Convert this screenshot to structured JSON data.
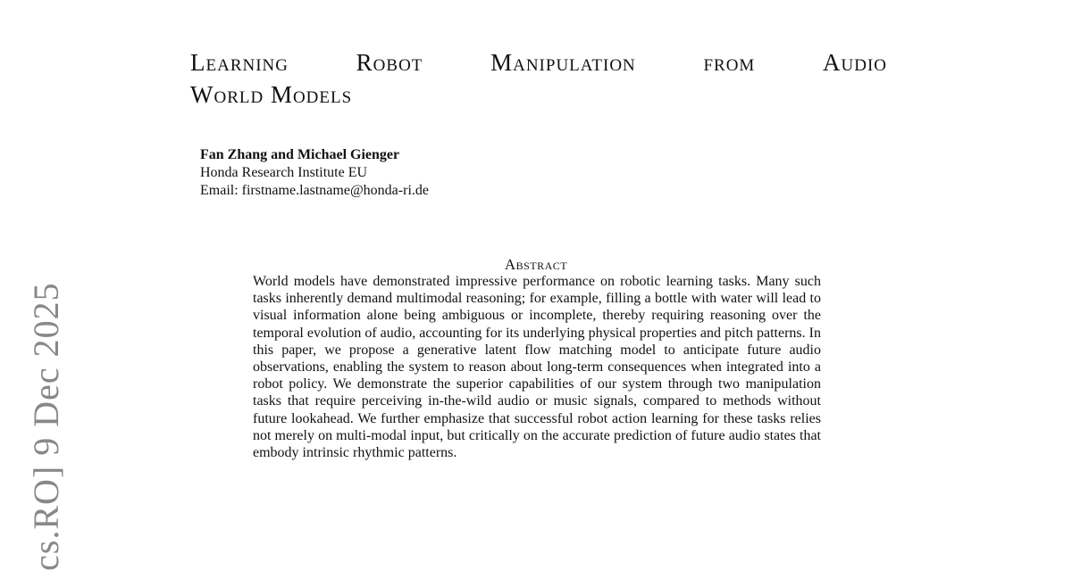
{
  "title": {
    "line1": [
      "Learning",
      "Robot",
      "Manipulation",
      "from",
      "Audio"
    ],
    "line2": "World Models"
  },
  "authors": {
    "names": "Fan Zhang and Michael Gienger",
    "affiliation": "Honda Research Institute EU",
    "email": "Email: firstname.lastname@honda-ri.de"
  },
  "abstract": {
    "heading": "Abstract",
    "text": "World models have demonstrated impressive performance on robotic learning tasks. Many such tasks inherently demand multimodal reasoning; for example, filling a bottle with water will lead to visual information alone being ambiguous or incomplete, thereby requiring reasoning over the temporal evolution of audio, accounting for its underlying physical properties and pitch patterns. In this paper, we propose a generative latent flow matching model to anticipate future audio observations, enabling the system to reason about long-term consequences when integrated into a robot policy. We demonstrate the superior capabilities of our system through two manipulation tasks that require perceiving in-the-wild audio or music signals, compared to methods without future lookahead. We further emphasize that successful robot action learning for these tasks relies not merely on multi-modal input, but critically on the accurate prediction of future audio states that embody intrinsic rhythmic patterns."
  },
  "arxiv_stamp": "cs.RO]  9 Dec 2025"
}
